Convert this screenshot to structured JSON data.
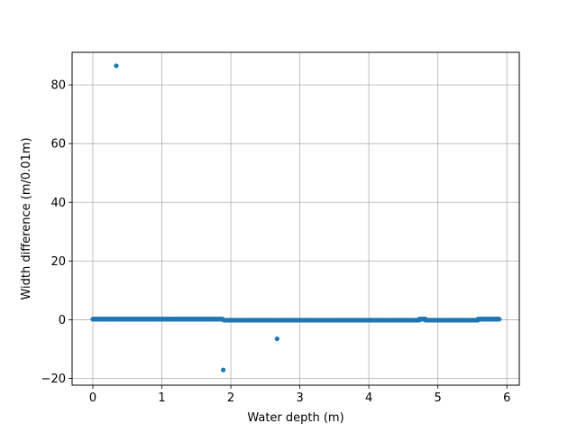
{
  "chart_data": {
    "type": "scatter",
    "title": "",
    "xlabel": "Water depth (m)",
    "ylabel": "Width difference (m/0.01m)",
    "xlim": [
      -0.3,
      6.18
    ],
    "ylim": [
      -22.3,
      91.1
    ],
    "xticks": [
      0,
      1,
      2,
      3,
      4,
      5,
      6
    ],
    "yticks": [
      -20,
      0,
      20,
      40,
      60,
      80
    ],
    "grid": true,
    "legend": "none",
    "marker_color": "#1f77b4",
    "series": [
      {
        "points": [
          [
            0.34,
            86.5
          ],
          [
            1.89,
            -17.1
          ],
          [
            2.67,
            -6.5
          ]
        ],
        "baseline_segments": [
          {
            "x_start": 0.0,
            "x_end": 1.88,
            "y": 0.2
          },
          {
            "x_start": 1.9,
            "x_end": 4.73,
            "y": -0.15
          },
          {
            "x_start": 4.73,
            "x_end": 4.82,
            "y": 0.2
          },
          {
            "x_start": 4.82,
            "x_end": 5.58,
            "y": -0.15
          },
          {
            "x_start": 5.58,
            "x_end": 5.89,
            "y": 0.2
          }
        ],
        "x_step": 0.01
      }
    ]
  }
}
